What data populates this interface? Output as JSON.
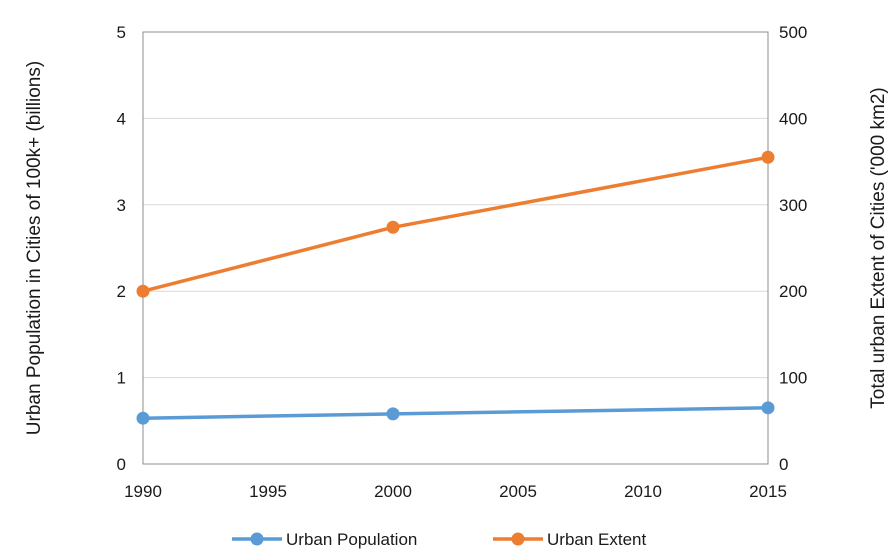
{
  "chart_data": {
    "type": "line",
    "title": "",
    "xlabel": "",
    "ylabel": "Urban Population in Cities of 100k+ (billions)",
    "y2label": "Total urban Extent of Cities ('000 km2)",
    "xlim": [
      1990,
      2015
    ],
    "xticks": [
      "1990",
      "1995",
      "2000",
      "2005",
      "2010",
      "2015"
    ],
    "ylim": [
      0,
      5
    ],
    "yticks": [
      "0",
      "1",
      "2",
      "3",
      "4",
      "5"
    ],
    "y2lim": [
      0,
      500
    ],
    "y2ticks": [
      "0",
      "100",
      "200",
      "300",
      "400",
      "500"
    ],
    "grid": true,
    "legend_position": "bottom",
    "series": [
      {
        "name": "Urban Population",
        "axis": "left",
        "color": "#5b9bd5",
        "x": [
          1990,
          2000,
          2015
        ],
        "y": [
          0.53,
          0.58,
          0.65
        ]
      },
      {
        "name": "Urban Extent",
        "axis": "right",
        "color": "#ed7d31",
        "x": [
          1990,
          2000,
          2015
        ],
        "y": [
          200,
          274,
          355
        ]
      }
    ]
  }
}
